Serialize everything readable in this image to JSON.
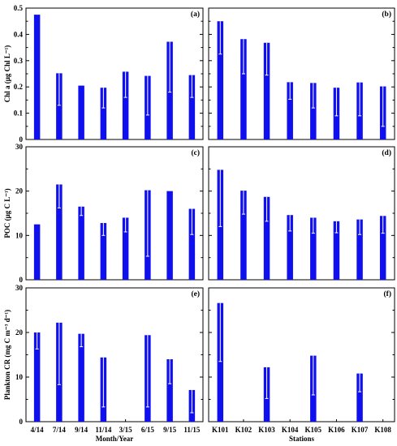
{
  "chart_data": [
    {
      "id": "a",
      "type": "bar",
      "panel_label": "(a)",
      "categories": [
        "4/14",
        "7/14",
        "9/14",
        "11/14",
        "3/15",
        "6/15",
        "9/15",
        "11/15"
      ],
      "values": [
        0.475,
        0.252,
        0.205,
        0.197,
        0.258,
        0.242,
        0.372,
        0.245
      ],
      "error_low": [
        null,
        0.13,
        null,
        0.12,
        0.16,
        0.093,
        0.18,
        0.16
      ],
      "ylim": [
        0,
        0.5
      ],
      "yticks": [
        "0",
        "0.1",
        "0.2",
        "0.3",
        "0.4",
        "0.5"
      ],
      "ylabel": "Chl a (μg Chl L⁻¹)",
      "color": "#1010ee"
    },
    {
      "id": "b",
      "type": "bar",
      "panel_label": "(b)",
      "categories": [
        "K101",
        "K102",
        "K103",
        "K104",
        "K105",
        "K106",
        "K107",
        "K108"
      ],
      "values": [
        0.45,
        0.382,
        0.368,
        0.218,
        0.215,
        0.197,
        0.217,
        0.202
      ],
      "error_low": [
        0.325,
        0.25,
        0.245,
        0.153,
        0.12,
        0.09,
        0.09,
        0.05
      ],
      "ylim": [
        0,
        0.5
      ],
      "color": "#1010ee"
    },
    {
      "id": "c",
      "type": "bar",
      "panel_label": "(c)",
      "categories": [
        "4/14",
        "7/14",
        "9/14",
        "11/14",
        "3/15",
        "6/15",
        "9/15",
        "11/15"
      ],
      "values": [
        12.5,
        21.5,
        16.5,
        12.8,
        14.0,
        20.2,
        20.0,
        16.0
      ],
      "error_low": [
        null,
        16.2,
        14.5,
        10.0,
        10.8,
        5.3,
        null,
        10.2
      ],
      "ylim": [
        0,
        30
      ],
      "yticks": [
        "0",
        "10",
        "20",
        "30"
      ],
      "ylabel": "POC (μg C L⁻¹)",
      "color": "#1010ee"
    },
    {
      "id": "d",
      "type": "bar",
      "panel_label": "(d)",
      "categories": [
        "K101",
        "K102",
        "K103",
        "K104",
        "K105",
        "K106",
        "K107",
        "K108"
      ],
      "values": [
        24.8,
        20.1,
        18.7,
        14.6,
        14.0,
        13.2,
        13.6,
        14.4
      ],
      "error_low": [
        12.0,
        14.8,
        13.2,
        11.0,
        10.5,
        10.6,
        10.2,
        10.5
      ],
      "ylim": [
        0,
        30
      ],
      "color": "#1010ee"
    },
    {
      "id": "e",
      "type": "bar",
      "panel_label": "(e)",
      "categories": [
        "4/14",
        "7/14",
        "9/14",
        "11/14",
        "3/15",
        "6/15",
        "9/15",
        "11/15"
      ],
      "values": [
        20.0,
        22.2,
        19.7,
        14.4,
        null,
        19.4,
        14.0,
        7.1
      ],
      "error_low": [
        16.3,
        8.3,
        16.8,
        3.3,
        null,
        3.3,
        8.5,
        2.0
      ],
      "ylim": [
        0,
        30
      ],
      "yticks": [
        "0",
        "10",
        "20",
        "30"
      ],
      "ylabel": "Plankton CR (mg C m⁻³ d⁻¹)",
      "xlabel": "Month/Year",
      "color": "#1010ee"
    },
    {
      "id": "f",
      "type": "bar",
      "panel_label": "(f)",
      "categories": [
        "K101",
        "K102",
        "K103",
        "K104",
        "K105",
        "K106",
        "K107",
        "K108"
      ],
      "values": [
        26.6,
        null,
        12.2,
        null,
        14.8,
        null,
        10.8,
        null
      ],
      "error_low": [
        13.5,
        null,
        5.2,
        null,
        6.0,
        null,
        6.7,
        null
      ],
      "ylim": [
        0,
        30
      ],
      "xlabel": "Stations",
      "color": "#1010ee"
    }
  ]
}
